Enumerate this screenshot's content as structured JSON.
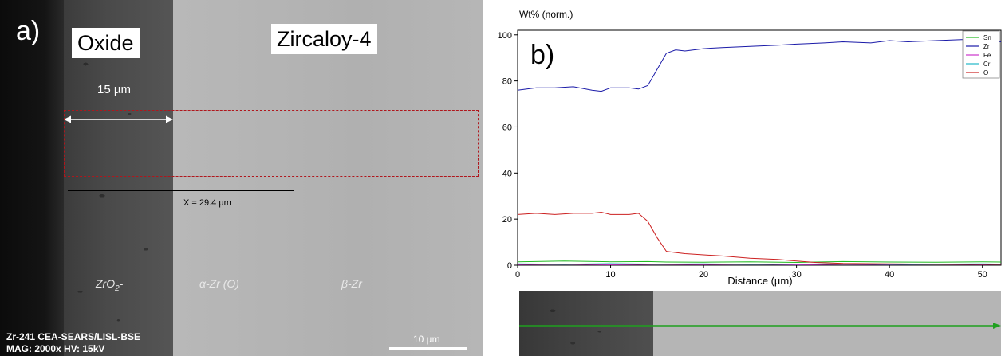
{
  "panel_a": {
    "letter": "a)",
    "oxide_label": "Oxide",
    "zircaloy_label": "Zircaloy-4",
    "thickness_label": "15 µm",
    "scan_length": "X = 29.4 µm",
    "phases": {
      "zro2": "ZrO2-",
      "alpha": "α-Zr (O)",
      "beta": "β-Zr"
    },
    "sem_info_line1": "Zr-241  CEA-SEARS/LISL-BSE",
    "sem_info_line2": "MAG: 2000x  HV: 15kV",
    "scalebar_label": "10 µm",
    "colors": {
      "scan_box": "#b0161c",
      "oxide": "#444444",
      "metal": "#b5b5b5"
    }
  },
  "chart_data": {
    "type": "line",
    "panel_label": "b)",
    "ylabel": "Wt% (norm.)",
    "xlabel": "Distance (µm)",
    "xlim": [
      0,
      52
    ],
    "ylim": [
      0,
      102
    ],
    "xticks": [
      0,
      10,
      20,
      30,
      40,
      50
    ],
    "yticks": [
      0,
      20,
      40,
      60,
      80,
      100
    ],
    "grid": false,
    "legend_position": "top-right",
    "series": [
      {
        "name": "Sn",
        "color": "#22bb22",
        "x": [
          0,
          5,
          10,
          14,
          16,
          20,
          25,
          30,
          35,
          40,
          45,
          50,
          52
        ],
        "y": [
          1.5,
          1.8,
          1.5,
          1.6,
          1.4,
          1.3,
          1.5,
          1.2,
          1.6,
          1.4,
          1.3,
          1.5,
          1.4
        ]
      },
      {
        "name": "Zr",
        "color": "#1a1aa8",
        "x": [
          0,
          2,
          4,
          6,
          8,
          9,
          10,
          12,
          13,
          14,
          15,
          16,
          17,
          18,
          20,
          22,
          25,
          28,
          30,
          33,
          35,
          38,
          40,
          42,
          45,
          48,
          50,
          52
        ],
        "y": [
          76,
          77,
          77,
          77.5,
          76,
          75.5,
          77,
          77,
          76.5,
          78,
          85,
          92,
          93.5,
          93,
          94,
          94.5,
          95,
          95.5,
          96,
          96.5,
          97,
          96.5,
          97.5,
          97,
          97.5,
          98,
          97,
          97
        ]
      },
      {
        "name": "Fe",
        "color": "#cc33cc",
        "x": [
          0,
          5,
          10,
          15,
          20,
          25,
          30,
          35,
          40,
          45,
          50,
          52
        ],
        "y": [
          0.3,
          0.5,
          0.2,
          0.4,
          0.3,
          0.5,
          0.2,
          0.4,
          0.3,
          0.5,
          0.3,
          0.4
        ]
      },
      {
        "name": "Cr",
        "color": "#22b8c8",
        "x": [
          0,
          5,
          10,
          15,
          20,
          25,
          30,
          35,
          40,
          45,
          50,
          52
        ],
        "y": [
          0.6,
          0.4,
          0.7,
          0.5,
          0.6,
          0.4,
          0.5,
          0.6,
          0.4,
          0.5,
          0.6,
          0.5
        ]
      },
      {
        "name": "O",
        "color": "#cc2020",
        "x": [
          0,
          2,
          4,
          6,
          8,
          9,
          10,
          12,
          13,
          14,
          15,
          16,
          17,
          18,
          20,
          22,
          25,
          28,
          30,
          32,
          35,
          40,
          45,
          50,
          52
        ],
        "y": [
          22,
          22.5,
          22,
          22.5,
          22.5,
          23,
          22,
          22,
          22.5,
          19,
          12,
          6,
          5.5,
          5,
          4.5,
          4,
          3,
          2.5,
          1.8,
          1.2,
          0.8,
          0.6,
          0.5,
          0.4,
          0.4
        ]
      }
    ]
  },
  "linescan": {
    "colors": {
      "arrow": "#1fa01f"
    }
  }
}
